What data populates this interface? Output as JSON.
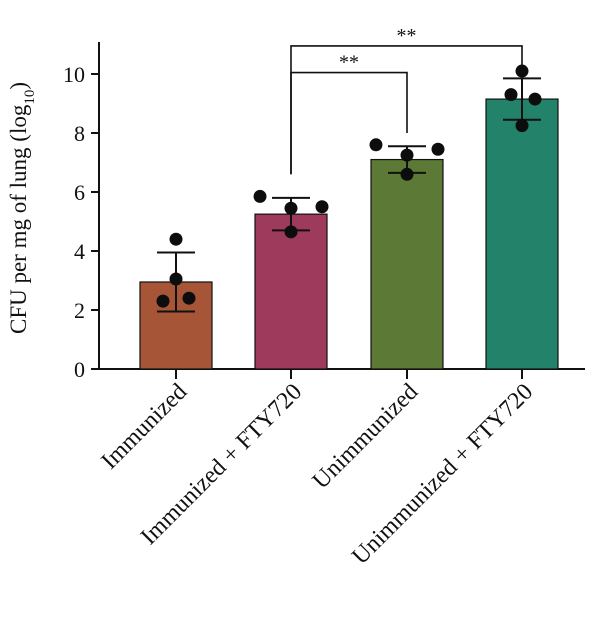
{
  "chart_data": {
    "type": "bar",
    "ylabel": "CFU per mg of lung (log",
    "ylabel_subscript": "10",
    "ylabel_suffix": ")",
    "ylim": [
      0,
      11
    ],
    "yticks": [
      0,
      2,
      4,
      6,
      8,
      10
    ],
    "categories": [
      "Immunized",
      "Immunized + FTY720",
      "Unimmunized",
      "Unimmunized + FTY720"
    ],
    "values": [
      2.95,
      5.25,
      7.1,
      9.15
    ],
    "error": [
      1.0,
      0.55,
      0.45,
      0.7
    ],
    "colors": [
      "#a65637",
      "#9e3a5c",
      "#5c7a35",
      "#23836a"
    ],
    "points": [
      [
        4.4,
        3.05,
        2.3,
        2.4
      ],
      [
        5.85,
        5.45,
        4.65,
        5.5
      ],
      [
        7.6,
        7.25,
        6.6,
        7.45
      ],
      [
        10.1,
        9.3,
        8.25,
        9.15
      ]
    ],
    "significance": [
      {
        "from": 1,
        "to": 2,
        "label": "**"
      },
      {
        "from": 1,
        "to": 3,
        "label": "**"
      }
    ],
    "grid": false,
    "legend": "none"
  }
}
